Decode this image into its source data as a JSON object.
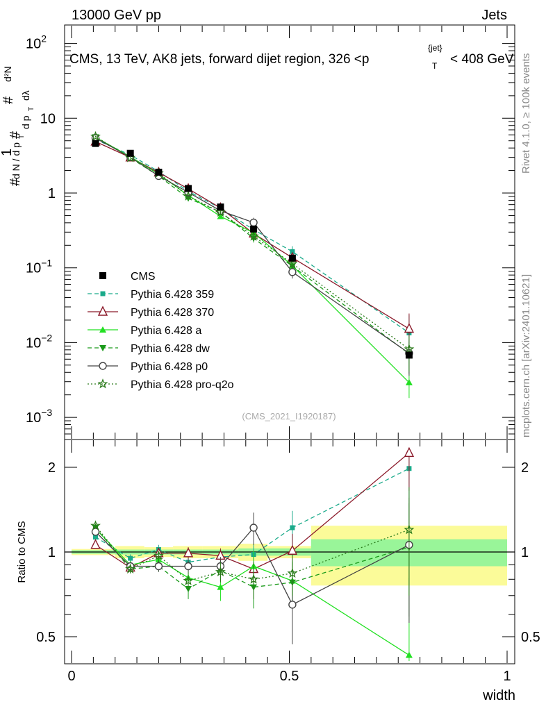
{
  "header": {
    "left": "13000 GeV pp",
    "right": "Jets",
    "title": "CMS, 13 TeV, AK8 jets, forward dijet region, 326 <p",
    "title_sub": "T",
    "title_sup": "{jet}",
    "title_tail": "< 408 GeV",
    "side_top": "Rivet 4.1.0, ≥ 100k events",
    "side_bottom": "mcplots.cern.ch [arXiv:2401.10621]",
    "analysis": "(CMS_2021_I1920187)"
  },
  "labels": {
    "ratio_ylabel": "Ratio to CMS",
    "xlabel": "width"
  },
  "colors": {
    "data": "#000000",
    "p359": "#1aaa8a",
    "p370": "#8b1a2a",
    "pa": "#22e022",
    "pdw": "#1a9a1a",
    "pp0": "#444444",
    "pq2o": "#2a7a1a",
    "band_inner": "#99f599",
    "band_outer": "#fbfb99"
  },
  "chart_data": {
    "type": "line",
    "xlabel": "width",
    "ylabel": "1/dN/dp_T  d²N/dp_T dλ",
    "xlim": [
      0,
      1
    ],
    "ylim_main": [
      0.0004,
      200
    ],
    "ylim_ratio": [
      0.4,
      2.3
    ],
    "x_ticks": [
      "0",
      "0.5",
      "1"
    ],
    "y_ticks_main": [
      "10^-3",
      "10^-2",
      "10^-1",
      "1",
      "10",
      "10^2"
    ],
    "y_ticks_ratio": [
      "0.5",
      "1",
      "2"
    ],
    "bins": [
      [
        0,
        0.1
      ],
      [
        0.1,
        0.167
      ],
      [
        0.167,
        0.233
      ],
      [
        0.233,
        0.3
      ],
      [
        0.3,
        0.383
      ],
      [
        0.383,
        0.45
      ],
      [
        0.45,
        0.55
      ],
      [
        0.55,
        1.0
      ]
    ],
    "x": [
      0.055,
      0.135,
      0.2,
      0.268,
      0.342,
      0.418,
      0.507,
      0.775
    ],
    "data": {
      "name": "CMS",
      "values": [
        4.6,
        3.4,
        1.9,
        1.15,
        0.65,
        0.33,
        0.135,
        0.0068
      ],
      "band_inner": [
        0.015,
        0.02,
        0.02,
        0.02,
        0.02,
        0.03,
        0.03,
        0.11
      ],
      "band_outer": [
        0.025,
        0.05,
        0.04,
        0.05,
        0.05,
        0.07,
        0.05,
        0.24
      ]
    },
    "series": [
      {
        "name": "Pythia 6.428 359",
        "key": "p359",
        "marker": "square",
        "dash": "6,4",
        "ratio": [
          1.13,
          0.95,
          1.02,
          0.92,
          0.96,
          0.98,
          1.22,
          1.98
        ],
        "ratio_err": [
          0.02,
          0.03,
          0.04,
          0.05,
          0.06,
          0.09,
          0.18,
          0.72
        ]
      },
      {
        "name": "Pythia 6.428 370",
        "key": "p370",
        "marker": "tri-open",
        "dash": "",
        "ratio": [
          1.06,
          0.88,
          0.99,
          0.99,
          0.97,
          0.87,
          1.01,
          2.25
        ],
        "ratio_err": [
          0.02,
          0.03,
          0.03,
          0.05,
          0.06,
          0.09,
          0.15,
          0.6
        ]
      },
      {
        "name": "Pythia 6.428 a",
        "key": "pa",
        "marker": "tri-fill",
        "dash": "",
        "ratio": [
          1.21,
          0.9,
          0.94,
          0.81,
          0.75,
          0.89,
          0.79,
          0.43
        ],
        "ratio_err": [
          0.02,
          0.03,
          0.04,
          0.06,
          0.08,
          0.12,
          0.14,
          0.38
        ]
      },
      {
        "name": "Pythia 6.428 dw",
        "key": "pdw",
        "marker": "tri-down",
        "dash": "6,4",
        "ratio": [
          1.22,
          0.87,
          0.89,
          0.74,
          0.86,
          0.75,
          0.78,
          1.04
        ],
        "ratio_err": [
          0.02,
          0.03,
          0.04,
          0.06,
          0.07,
          0.12,
          0.14,
          0.45
        ]
      },
      {
        "name": "Pythia 6.428 p0",
        "key": "pp0",
        "marker": "circle-open",
        "dash": "",
        "ratio": [
          1.18,
          0.89,
          0.89,
          0.89,
          0.89,
          1.22,
          0.65,
          1.06
        ],
        "ratio_err": [
          0.02,
          0.03,
          0.04,
          0.06,
          0.07,
          0.16,
          0.18,
          0.5
        ]
      },
      {
        "name": "Pythia 6.428 pro-q2o",
        "key": "pq2o",
        "marker": "star",
        "dash": "2,3",
        "ratio": [
          1.24,
          0.87,
          0.97,
          0.79,
          0.85,
          0.8,
          0.84,
          1.2
        ],
        "ratio_err": [
          0.02,
          0.03,
          0.04,
          0.06,
          0.07,
          0.12,
          0.14,
          0.5
        ]
      }
    ]
  }
}
